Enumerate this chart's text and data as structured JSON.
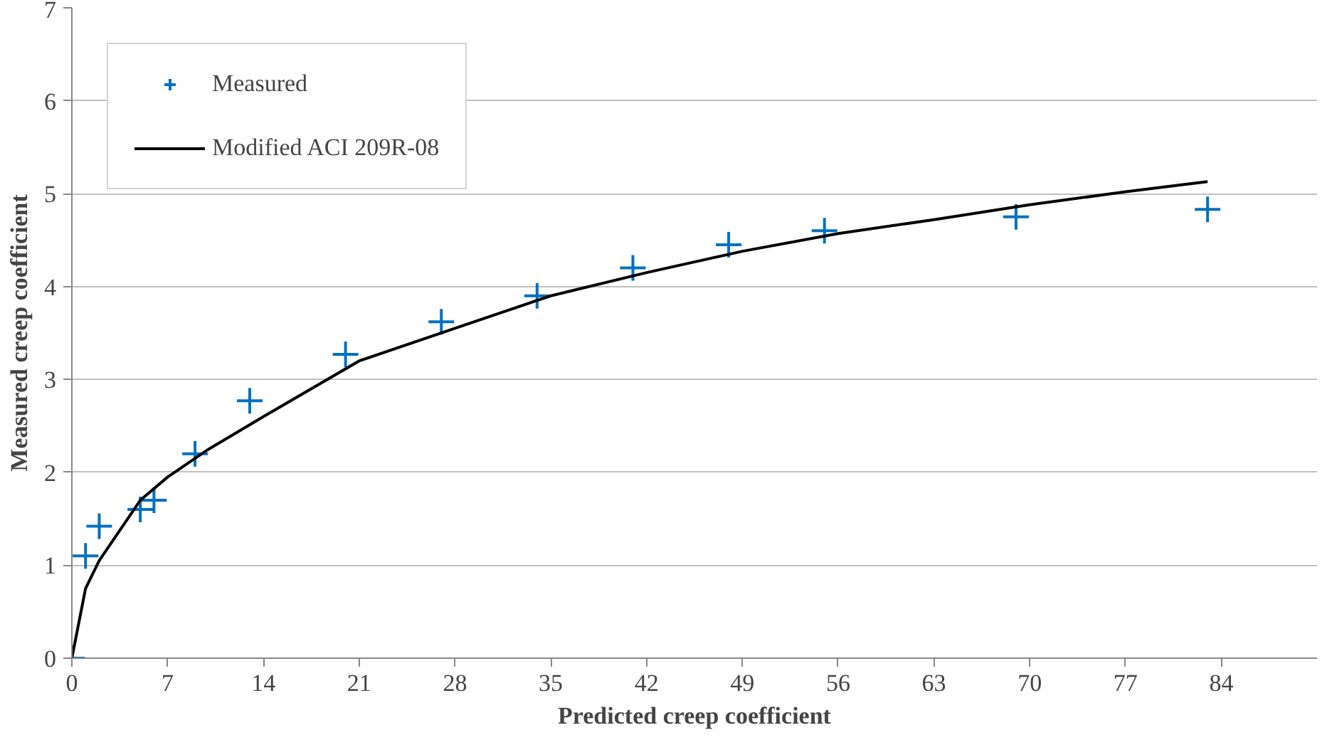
{
  "chart_data": {
    "type": "scatter",
    "xlabel": "Predicted creep coefficient",
    "ylabel": "Measured creep coefficient",
    "xlim": [
      0,
      91
    ],
    "xticks": [
      0,
      7,
      14,
      21,
      28,
      35,
      42,
      49,
      56,
      63,
      70,
      77,
      84
    ],
    "ylim": [
      0,
      7
    ],
    "yticks": [
      0,
      1,
      2,
      3,
      4,
      5,
      6,
      7
    ],
    "grid": "y",
    "legend": "top left",
    "series": [
      {
        "name": "Measured",
        "marker": "cross",
        "color": "#0070c0",
        "x": [
          0,
          1,
          2,
          5,
          6,
          9,
          13,
          20,
          27,
          34,
          41,
          48,
          55,
          69,
          83
        ],
        "values": [
          0,
          1.1,
          1.42,
          1.6,
          1.7,
          2.2,
          2.77,
          3.27,
          3.62,
          3.9,
          4.2,
          4.45,
          4.6,
          4.75,
          4.83
        ]
      },
      {
        "name": "Modified ACI 209R-08",
        "type": "line",
        "color": "#000000",
        "x": [
          0,
          1,
          2,
          5,
          7,
          10,
          14,
          21,
          28,
          35,
          42,
          49,
          56,
          63,
          70,
          77,
          83
        ],
        "values": [
          0,
          0.75,
          1.05,
          1.7,
          1.95,
          2.25,
          2.6,
          3.2,
          3.55,
          3.9,
          4.15,
          4.38,
          4.57,
          4.72,
          4.88,
          5.02,
          5.13
        ]
      }
    ]
  }
}
